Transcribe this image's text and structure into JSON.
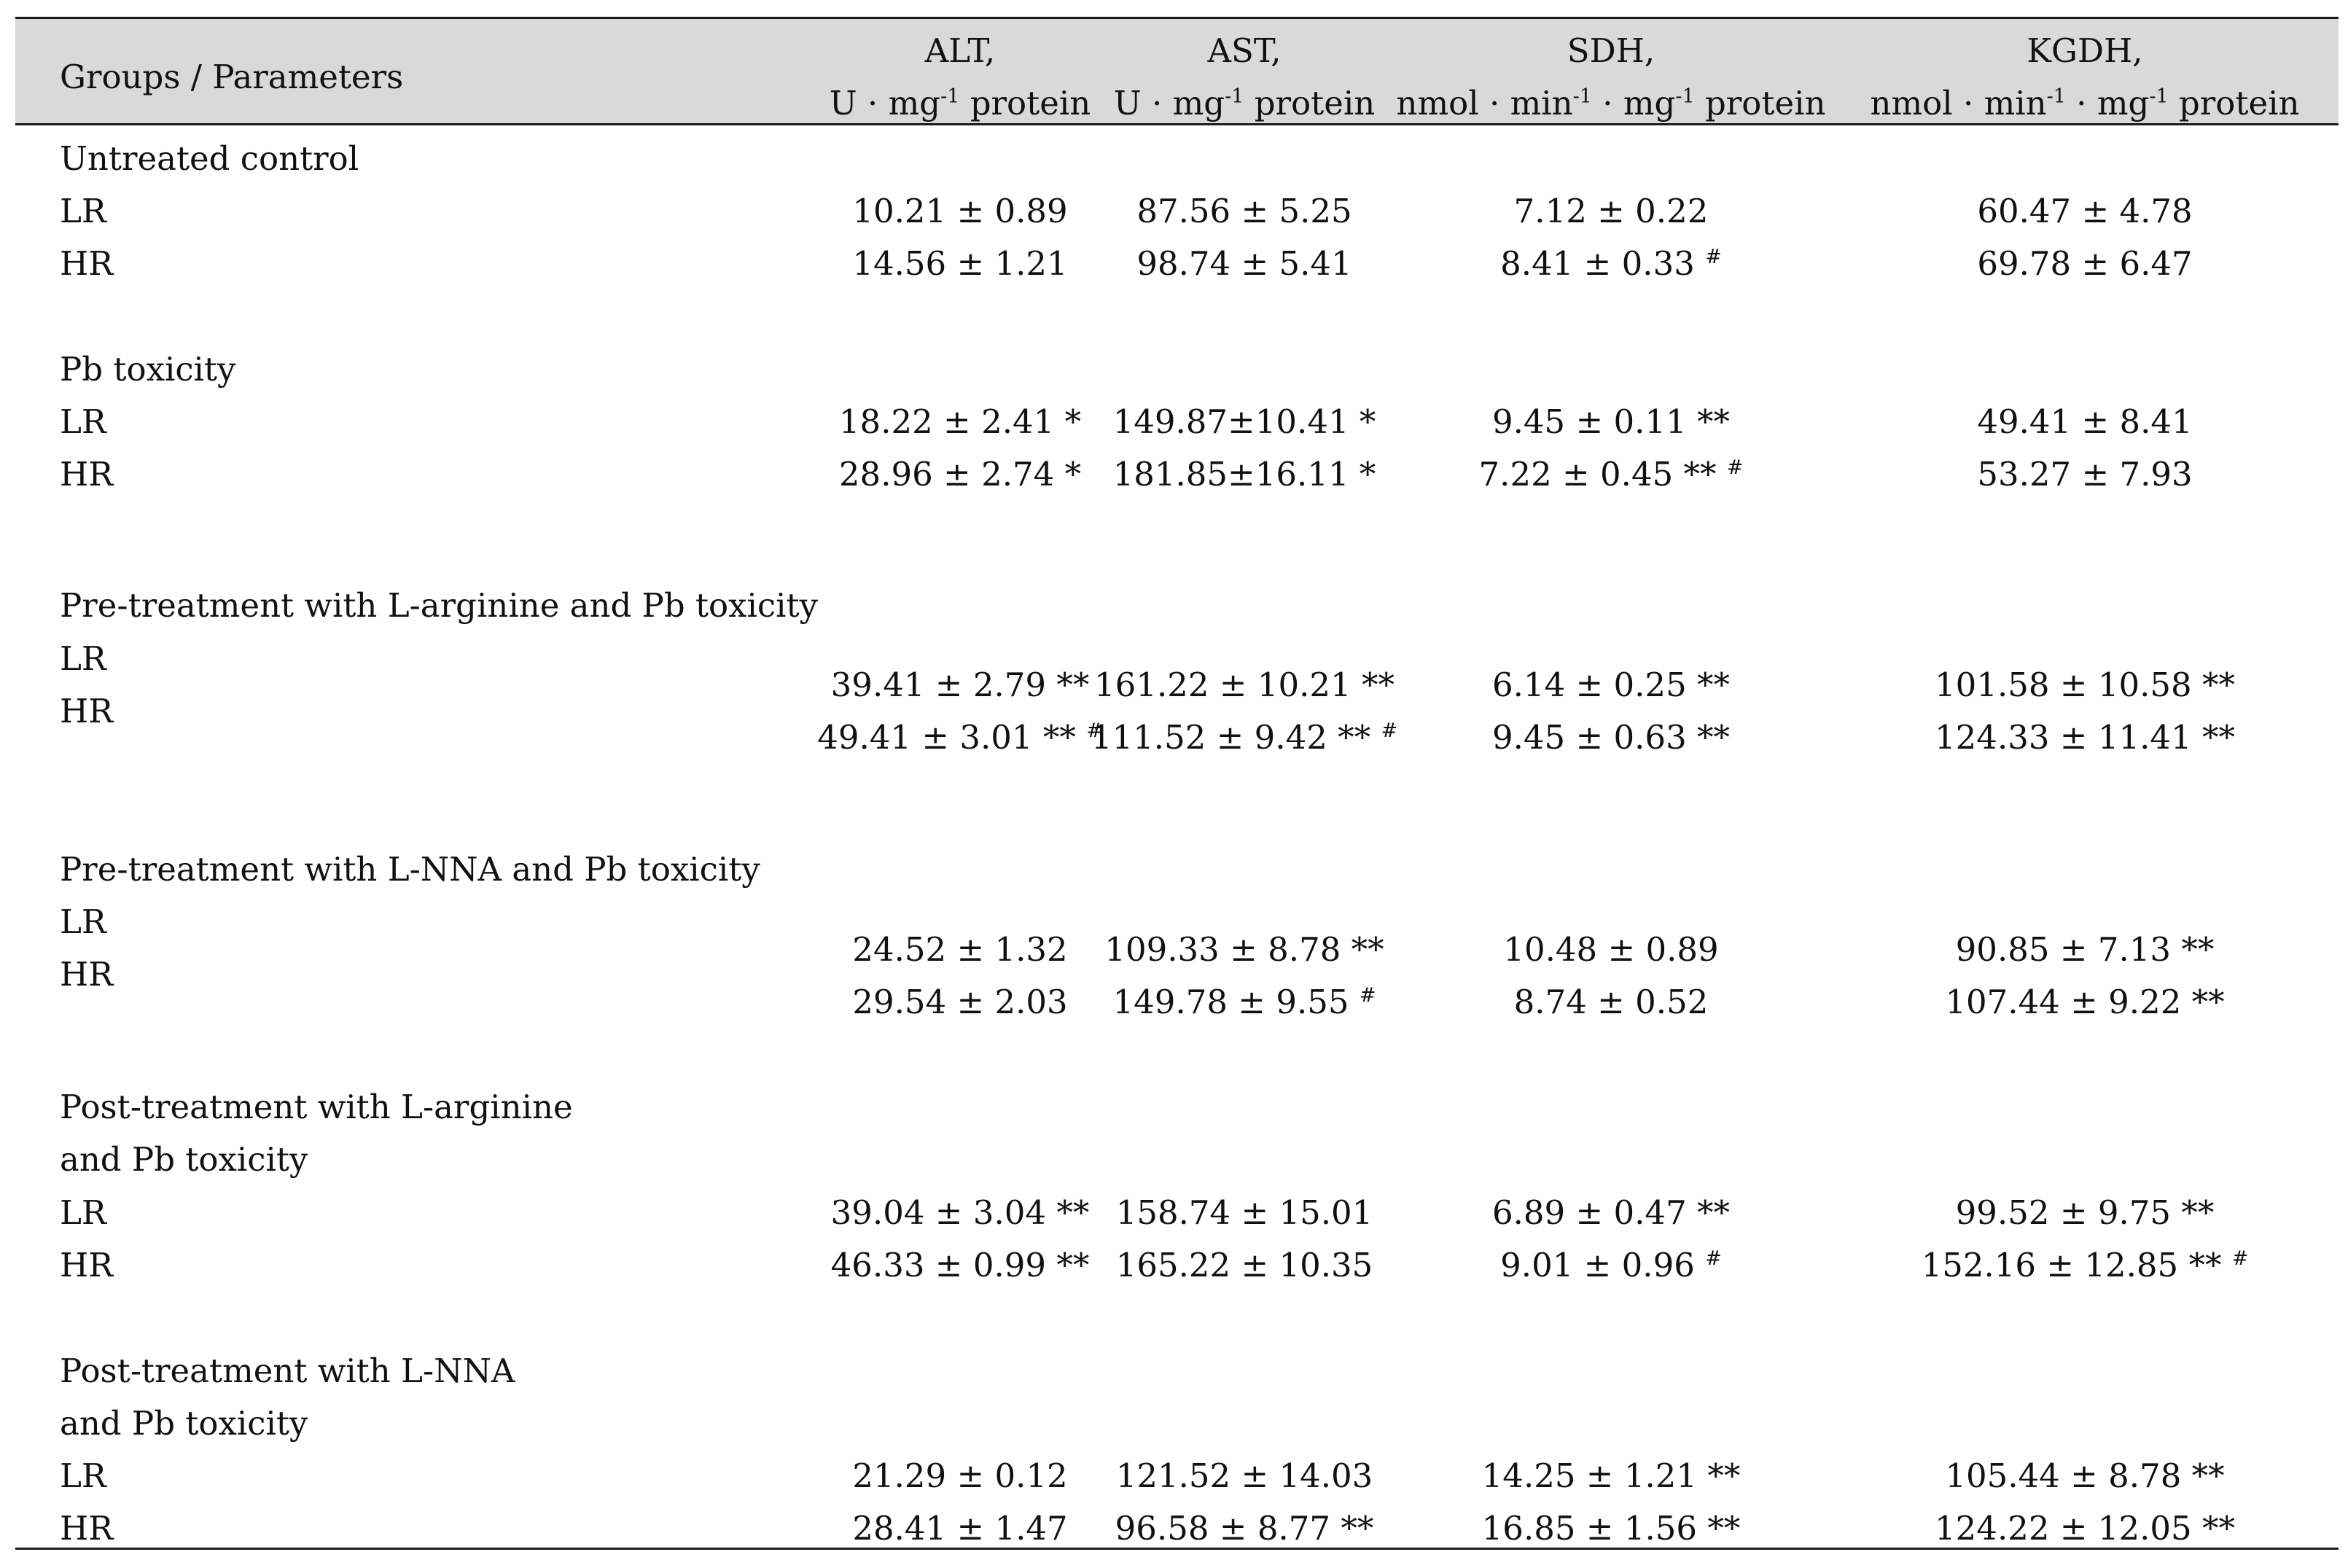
{
  "header": {
    "groups_label": "Groups / Parameters",
    "col1_line1": "ALT,",
    "col2_line1": "AST,",
    "col3_line1": "SDH,",
    "col4_line1": "KGDH,",
    "col1_unit_pre": "U · mg",
    "col1_unit_sup": "-1",
    "col1_unit_post": " protein",
    "col2_unit_pre": "U · mg",
    "col2_unit_sup": "-1",
    "col2_unit_post": " protein",
    "col3_unit_a": "nmol · min",
    "col3_unit_sup1": "-1",
    "col3_unit_b": " · mg",
    "col3_unit_sup2": "-1",
    "col3_unit_c": " protein",
    "col4_unit_a": "nmol · min",
    "col4_unit_sup1": "-1",
    "col4_unit_b": " · mg",
    "col4_unit_sup2": "-1",
    "col4_unit_c": " protein"
  },
  "groups": [
    {
      "label": "Untreated control",
      "lr": {
        "label": "LR",
        "alt": "10.21 ± 0.89",
        "ast": "87.56 ± 5.25",
        "sdh": "7.12 ± 0.22",
        "sdh_mark": "",
        "kgdh": "60.47 ± 4.78"
      },
      "hr": {
        "label": "HR",
        "alt": "14.56 ± 1.21",
        "ast": "98.74 ± 5.41",
        "sdh": "8.41 ± 0.33",
        "sdh_mark": "#",
        "kgdh": "69.78 ± 6.47"
      }
    },
    {
      "label": "Pb toxicity",
      "lr": {
        "label": "LR",
        "alt": "18.22 ± 2.41 *",
        "ast": "149.87±10.41 *",
        "sdh": "9.45 ± 0.11 **",
        "sdh_mark": "",
        "kgdh": "49.41 ± 8.41"
      },
      "hr": {
        "label": "HR",
        "alt": "28.96 ± 2.74 *",
        "ast": "181.85±16.11 *",
        "sdh": "7.22 ± 0.45 **",
        "sdh_mark": "#",
        "kgdh": "53.27 ± 7.93"
      }
    },
    {
      "label": "Pre-treatment with L-arginine and Pb toxicity",
      "lr": {
        "label": "LR",
        "alt": "39.41 ± 2.79 **",
        "ast": "161.22 ± 10.21 **",
        "sdh": "6.14 ± 0.25 **",
        "kgdh": "101.58 ± 10.58 **"
      },
      "hr": {
        "label": "HR",
        "alt": "49.41 ± 3.01 **",
        "alt_mark": "#",
        "ast": "111.52 ± 9.42 **",
        "ast_mark": "#",
        "sdh": "9.45 ± 0.63 **",
        "kgdh": "124.33 ± 11.41 **"
      }
    },
    {
      "label": "Pre-treatment with L-NNA and Pb toxicity",
      "lr": {
        "label": "LR",
        "alt": "24.52 ± 1.32",
        "ast": "109.33 ± 8.78 **",
        "sdh": "10.48 ± 0.89",
        "kgdh": "90.85 ± 7.13 **"
      },
      "hr": {
        "label": "HR",
        "alt": "29.54 ± 2.03",
        "ast": "149.78 ± 9.55",
        "ast_mark": "#",
        "sdh": "8.74 ± 0.52",
        "kgdh": "107.44 ± 9.22 **"
      }
    },
    {
      "label_line1": "Post-treatment with L-arginine",
      "label_line2": "and Pb toxicity",
      "lr": {
        "label": "LR",
        "alt": "39.04 ± 3.04 **",
        "ast": "158.74 ± 15.01",
        "sdh": "6.89 ± 0.47 **",
        "kgdh": "99.52 ± 9.75 **"
      },
      "hr": {
        "label": "HR",
        "alt": "46.33 ± 0.99 **",
        "ast": "165.22 ± 10.35",
        "sdh": "9.01 ± 0.96",
        "sdh_mark": "#",
        "kgdh": "152.16 ± 12.85 **",
        "kgdh_mark": "#"
      }
    },
    {
      "label_line1": "Post-treatment with L-NNA",
      "label_line2": "and Pb toxicity",
      "lr": {
        "label": "LR",
        "alt": "21.29 ± 0.12",
        "ast": "121.52 ± 14.03",
        "sdh": "14.25 ± 1.21 **",
        "kgdh": "105.44 ± 8.78 **"
      },
      "hr": {
        "label": "HR",
        "alt": "28.41 ± 1.47",
        "ast": "96.58 ± 8.77 **",
        "sdh": "16.85 ± 1.56 **",
        "kgdh": "124.22 ± 12.05 **"
      }
    }
  ]
}
